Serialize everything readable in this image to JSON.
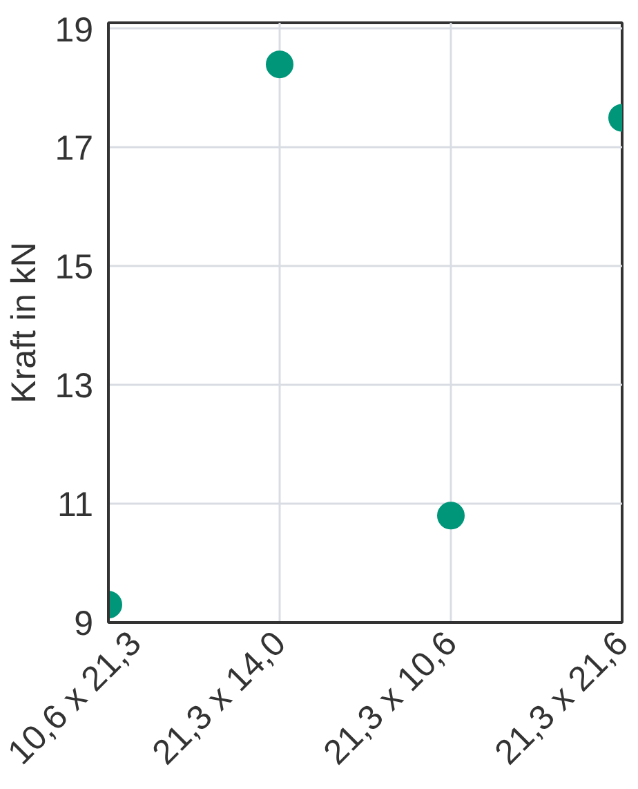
{
  "chart_data": {
    "type": "scatter",
    "ylabel": "Kraft in kN",
    "categories": [
      "10,6 x 21,3",
      "21,3 x 14,0",
      "21,3 x 10,6",
      "21,3 x 21,6"
    ],
    "values": [
      9.3,
      18.4,
      10.8,
      17.5
    ],
    "color": "#00967a",
    "ylim": [
      9,
      19.1
    ],
    "yticks": [
      9,
      11,
      13,
      15,
      17,
      19
    ],
    "grid": true,
    "marker": "circle"
  }
}
